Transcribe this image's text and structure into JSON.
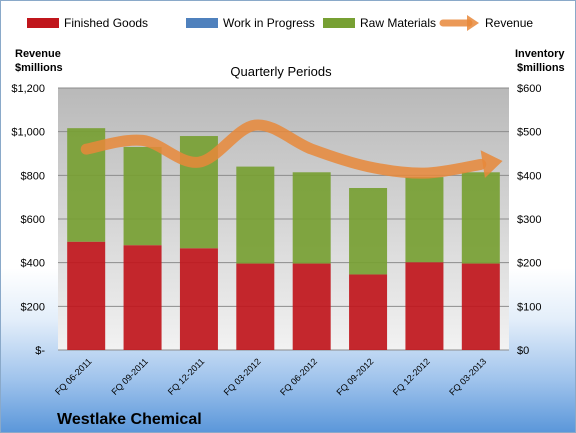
{
  "chart_data": {
    "type": "bar",
    "stacked": true,
    "title": "Quarterly Periods",
    "company": "Westlake Chemical",
    "categories": [
      "FQ 06-2011",
      "FQ 09-2011",
      "FQ 12-2011",
      "FQ 03-2012",
      "FQ 06-2012",
      "FQ 09-2012",
      "FQ 12-2012",
      "FQ 03-2013"
    ],
    "left_axis": {
      "title_line1": "Revenue",
      "title_line2": "$millions",
      "ticks": [
        "$-",
        "$200",
        "$400",
        "$600",
        "$800",
        "$1,000",
        "$1,200"
      ],
      "ylim": [
        0,
        1200
      ]
    },
    "right_axis": {
      "title_line1": "Inventory",
      "title_line2": "$millions",
      "ticks": [
        "$0",
        "$100",
        "$200",
        "$300",
        "$400",
        "$500",
        "$600"
      ],
      "ylim": [
        0,
        600
      ]
    },
    "legend_position": "top",
    "grid": true,
    "series": [
      {
        "name": "Finished Goods",
        "axis": "right",
        "color": "#c0161c",
        "values": [
          248,
          240,
          233,
          198,
          198,
          173,
          201,
          198
        ]
      },
      {
        "name": "Work in Progress",
        "axis": "right",
        "color": "#4f81bd",
        "values": [
          0,
          0,
          0,
          0,
          0,
          0,
          0,
          0
        ]
      },
      {
        "name": "Raw Materials",
        "axis": "right",
        "color": "#77a033",
        "values": [
          260,
          225,
          257,
          222,
          209,
          198,
          195,
          209
        ]
      },
      {
        "name": "Revenue",
        "axis": "left",
        "type": "line",
        "color": "#e8883a",
        "values": [
          920,
          960,
          860,
          1030,
          920,
          840,
          810,
          850
        ]
      }
    ]
  }
}
